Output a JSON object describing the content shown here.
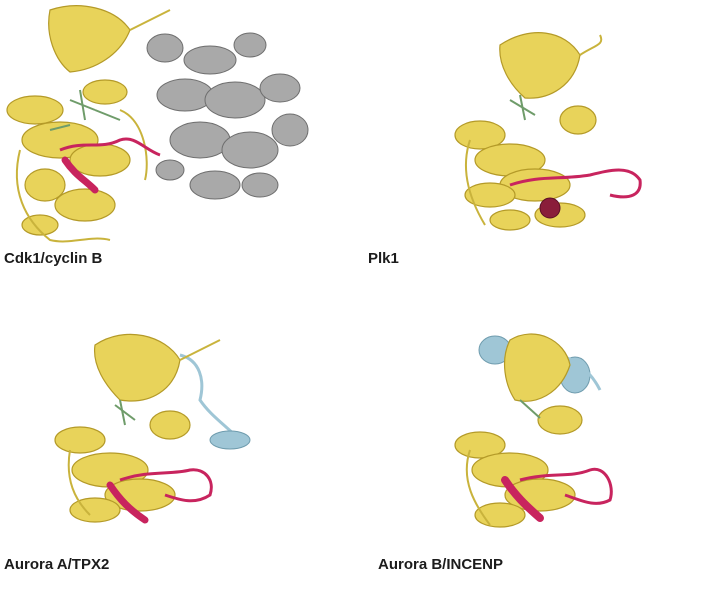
{
  "figure": {
    "panels": [
      {
        "label": "Cdk1/cyclin B",
        "partner_color": "#9b9b9b"
      },
      {
        "label": "Plk1"
      },
      {
        "label": "Aurora A/TPX2",
        "partner_color": "#9fc6d6"
      },
      {
        "label": "Aurora B/INCENP",
        "partner_color": "#9fc6d6"
      }
    ],
    "colors": {
      "kinase": "#e8d35a",
      "kinase_outline": "#b49a28",
      "activation_loop": "#c8245e",
      "ligand": "#6f9c6a"
    }
  }
}
